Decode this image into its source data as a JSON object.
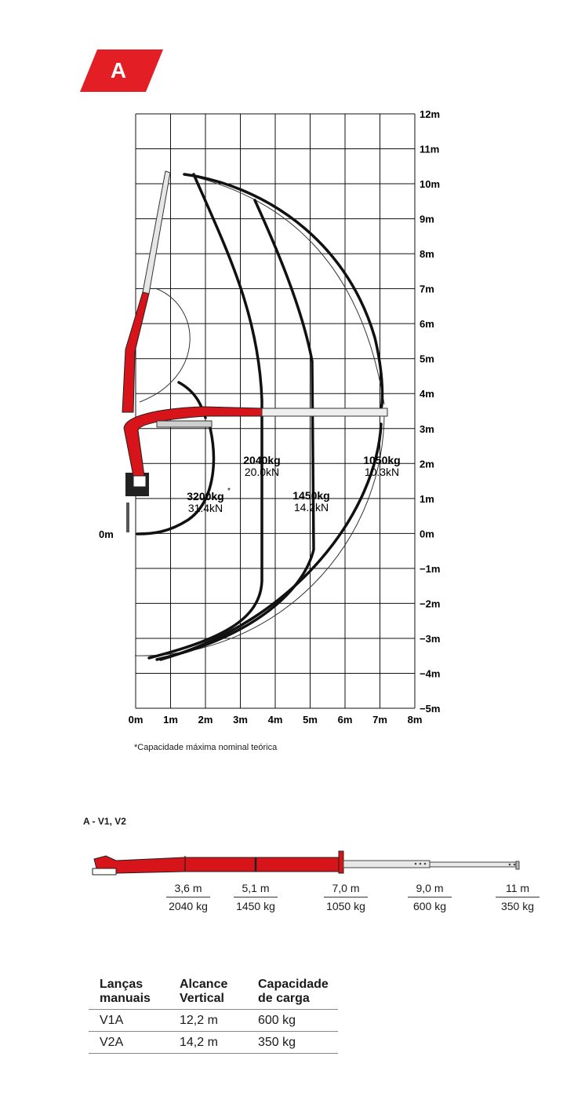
{
  "header": {
    "badge": "A",
    "badge_color": "#e31e24"
  },
  "diagram": {
    "x_ticks": [
      "0m",
      "1m",
      "2m",
      "3m",
      "4m",
      "5m",
      "6m",
      "7m",
      "8m"
    ],
    "y_ticks": [
      "12m",
      "11m",
      "10m",
      "9m",
      "8m",
      "7m",
      "6m",
      "5m",
      "4m",
      "3m",
      "2m",
      "1m",
      "0m",
      "−1m",
      "−2m",
      "−3m",
      "−4m",
      "−5m"
    ],
    "left_zero": "0m",
    "loads": [
      {
        "mass": "3200kg",
        "mark": "*",
        "force": "31.4kN"
      },
      {
        "mass": "2040kg",
        "force": "20.0kN"
      },
      {
        "mass": "1450kg",
        "force": "14.2kN"
      },
      {
        "mass": "1050kg",
        "force": "10.3kN"
      }
    ],
    "footnote": "*Capacidade máxima nominal teórica",
    "crane_color": "#d7141a"
  },
  "extension": {
    "title": "A - V1, V2",
    "items": [
      {
        "reach": "3,6 m",
        "capacity": "2040 kg"
      },
      {
        "reach": "5,1 m",
        "capacity": "1450 kg"
      },
      {
        "reach": "7,0 m",
        "capacity": "1050 kg"
      },
      {
        "reach": "9,0 m",
        "capacity": "600 kg"
      },
      {
        "reach": "11 m",
        "capacity": "350 kg"
      }
    ]
  },
  "table": {
    "headers": [
      "Lanças manuais",
      "Alcance Vertical",
      "Capacidade de carga"
    ],
    "rows": [
      [
        "V1A",
        "12,2 m",
        "600 kg"
      ],
      [
        "V2A",
        "14,2 m",
        "350 kg"
      ]
    ]
  }
}
